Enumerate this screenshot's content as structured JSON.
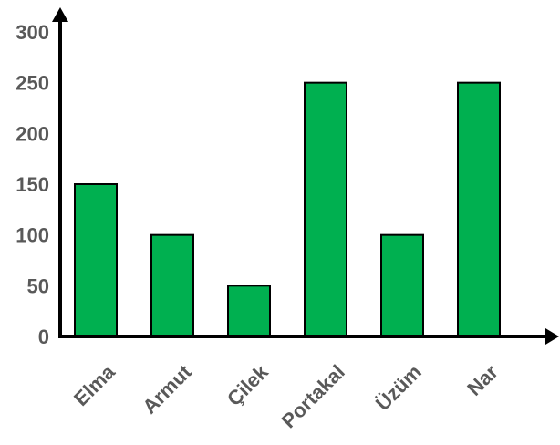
{
  "chart_data": {
    "type": "bar",
    "categories": [
      "Elma",
      "Armut",
      "Çilek",
      "Portakal",
      "Üzüm",
      "Nar"
    ],
    "values": [
      150,
      100,
      50,
      250,
      100,
      250
    ],
    "title": "",
    "xlabel": "",
    "ylabel": "",
    "ylim": [
      0,
      300
    ],
    "yticks": [
      "0",
      "50",
      "100",
      "150",
      "200",
      "250",
      "300"
    ],
    "grid": false,
    "legend": "none",
    "colors": {
      "bar": "#00b050",
      "tick_text": "#595959",
      "axis": "#000000"
    }
  }
}
